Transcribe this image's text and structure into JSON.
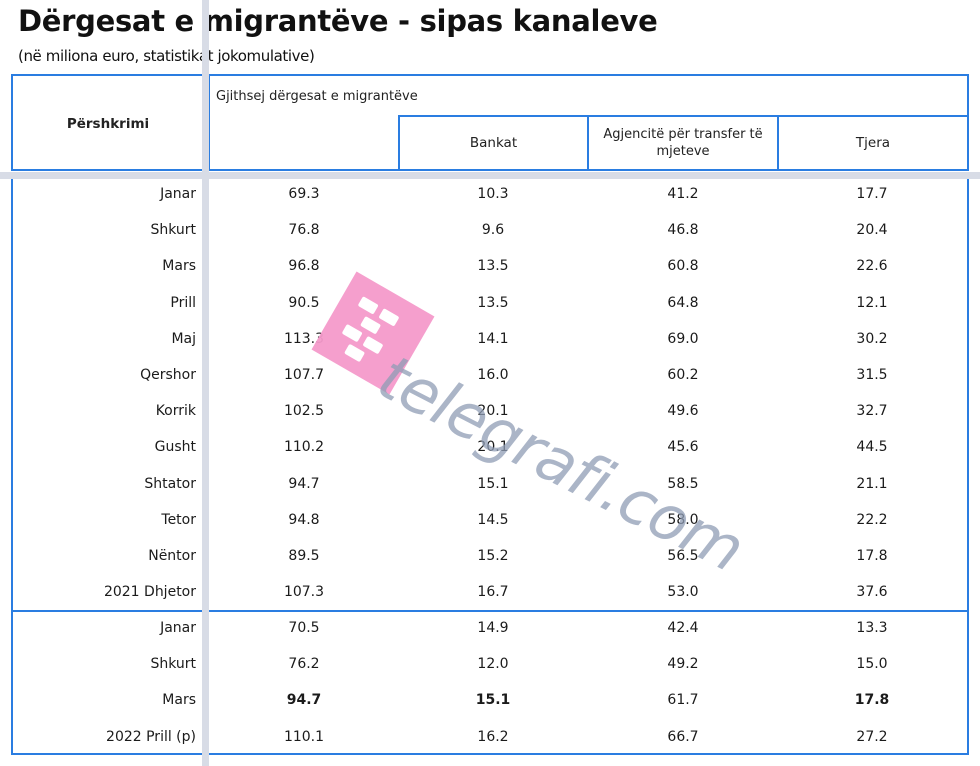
{
  "title": "Dërgesat e  migrantëve - sipas kanaleve",
  "subtitle": "(në miliona euro, statistikat jokomulative)",
  "table": {
    "header": {
      "description": "Përshkrimi",
      "group": "Gjithsej dërgesat e migrantëve",
      "columns": [
        "Bankat",
        "Agjencitë për transfer të mjeteve",
        "Tjera"
      ]
    },
    "sections": [
      {
        "rows": [
          {
            "label": "Janar",
            "total": "69.3",
            "bankat": "10.3",
            "agjencite": "41.2",
            "tjera": "17.7"
          },
          {
            "label": "Shkurt",
            "total": "76.8",
            "bankat": "9.6",
            "agjencite": "46.8",
            "tjera": "20.4"
          },
          {
            "label": "Mars",
            "total": "96.8",
            "bankat": "13.5",
            "agjencite": "60.8",
            "tjera": "22.6"
          },
          {
            "label": "Prill",
            "total": "90.5",
            "bankat": "13.5",
            "agjencite": "64.8",
            "tjera": "12.1"
          },
          {
            "label": "Maj",
            "total": "113.3",
            "bankat": "14.1",
            "agjencite": "69.0",
            "tjera": "30.2"
          },
          {
            "label": "Qershor",
            "total": "107.7",
            "bankat": "16.0",
            "agjencite": "60.2",
            "tjera": "31.5"
          },
          {
            "label": "Korrik",
            "total": "102.5",
            "bankat": "20.1",
            "agjencite": "49.6",
            "tjera": "32.7"
          },
          {
            "label": "Gusht",
            "total": "110.2",
            "bankat": "20.1",
            "agjencite": "45.6",
            "tjera": "44.5"
          },
          {
            "label": "Shtator",
            "total": "94.7",
            "bankat": "15.1",
            "agjencite": "58.5",
            "tjera": "21.1"
          },
          {
            "label": "Tetor",
            "total": "94.8",
            "bankat": "14.5",
            "agjencite": "58.0",
            "tjera": "22.2"
          },
          {
            "label": "Nëntor",
            "total": "89.5",
            "bankat": "15.2",
            "agjencite": "56.5",
            "tjera": "17.8"
          },
          {
            "label": "2021 Dhjetor",
            "total": "107.3",
            "bankat": "16.7",
            "agjencite": "53.0",
            "tjera": "37.6"
          }
        ]
      },
      {
        "rows": [
          {
            "label": "Janar",
            "total": "70.5",
            "bankat": "14.9",
            "agjencite": "42.4",
            "tjera": "13.3"
          },
          {
            "label": "Shkurt",
            "total": "76.2",
            "bankat": "12.0",
            "agjencite": "49.2",
            "tjera": "15.0"
          },
          {
            "label": "Mars",
            "total": "94.7",
            "bankat": "15.1",
            "agjencite": "61.7",
            "tjera": "17.8"
          },
          {
            "label": "2022 Prill (p)",
            "total": "110.1",
            "bankat": "16.2",
            "agjencite": "66.7",
            "tjera": "27.2"
          }
        ]
      }
    ]
  },
  "watermark": {
    "text": "telegrafi.com",
    "logo_color": "#f59acb",
    "text_color": "#8f9db5"
  },
  "colors": {
    "border": "#2a7de1",
    "gridline": "#d8dce6"
  }
}
